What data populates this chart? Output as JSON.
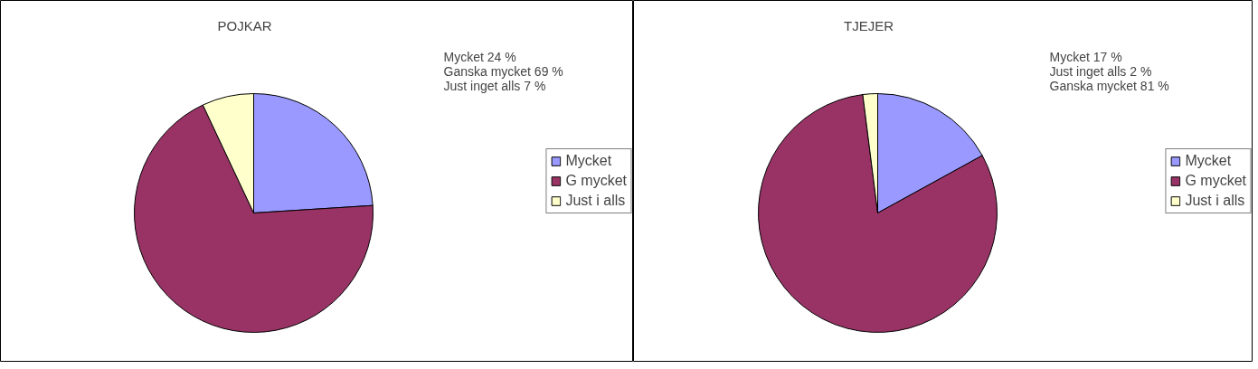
{
  "chart_data": [
    {
      "type": "pie",
      "title": "POJKAR",
      "categories": [
        "Mycket",
        "G mycket",
        "Just i alls"
      ],
      "values": [
        24,
        69,
        7
      ],
      "colors": [
        "#9999ff",
        "#993366",
        "#ffffcc"
      ],
      "legend": "right",
      "annotations": [
        "Mycket 24 %",
        "Ganska mycket 69 %",
        "Just inget alls 7 %"
      ]
    },
    {
      "type": "pie",
      "title": "TJEJER",
      "categories": [
        "Mycket",
        "G mycket",
        "Just i alls"
      ],
      "values": [
        17,
        81,
        2
      ],
      "colors": [
        "#9999ff",
        "#993366",
        "#ffffcc"
      ],
      "legend": "right",
      "annotations": [
        "Mycket 17 %",
        "Just inget alls 2 %",
        "Ganska mycket 81 %"
      ]
    }
  ]
}
